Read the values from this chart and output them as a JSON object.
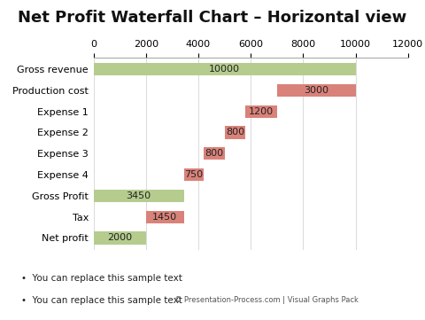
{
  "title": "Net Profit Waterfall Chart – Horizontal view",
  "categories": [
    "Gross revenue",
    "Production cost",
    "Expense 1",
    "Expense 2",
    "Expense 3",
    "Expense 4",
    "Gross Profit",
    "Tax",
    "Net profit"
  ],
  "starts": [
    0,
    7000,
    5800,
    5000,
    4200,
    3450,
    0,
    2000,
    0
  ],
  "widths": [
    10000,
    3000,
    1200,
    800,
    800,
    750,
    3450,
    1450,
    2000
  ],
  "labels": [
    "10000",
    "3000",
    "1200",
    "800",
    "800",
    "750",
    "3450",
    "1450",
    "2000"
  ],
  "colors": [
    "#b5cc8e",
    "#d9827a",
    "#d9827a",
    "#d9827a",
    "#d9827a",
    "#d9827a",
    "#b5cc8e",
    "#d9827a",
    "#b5cc8e"
  ],
  "xlim": [
    0,
    12000
  ],
  "xticks": [
    0,
    2000,
    4000,
    6000,
    8000,
    10000,
    12000
  ],
  "background_color": "#ffffff",
  "title_fontsize": 13,
  "bar_height": 0.6,
  "label_fontsize": 8,
  "tick_fontsize": 8,
  "ylabel_fontsize": 8,
  "bullet_texts": [
    "You can replace this sample text",
    "You can replace this sample text"
  ],
  "footnote": "© Presentation-Process.com | Visual Graphs Pack"
}
